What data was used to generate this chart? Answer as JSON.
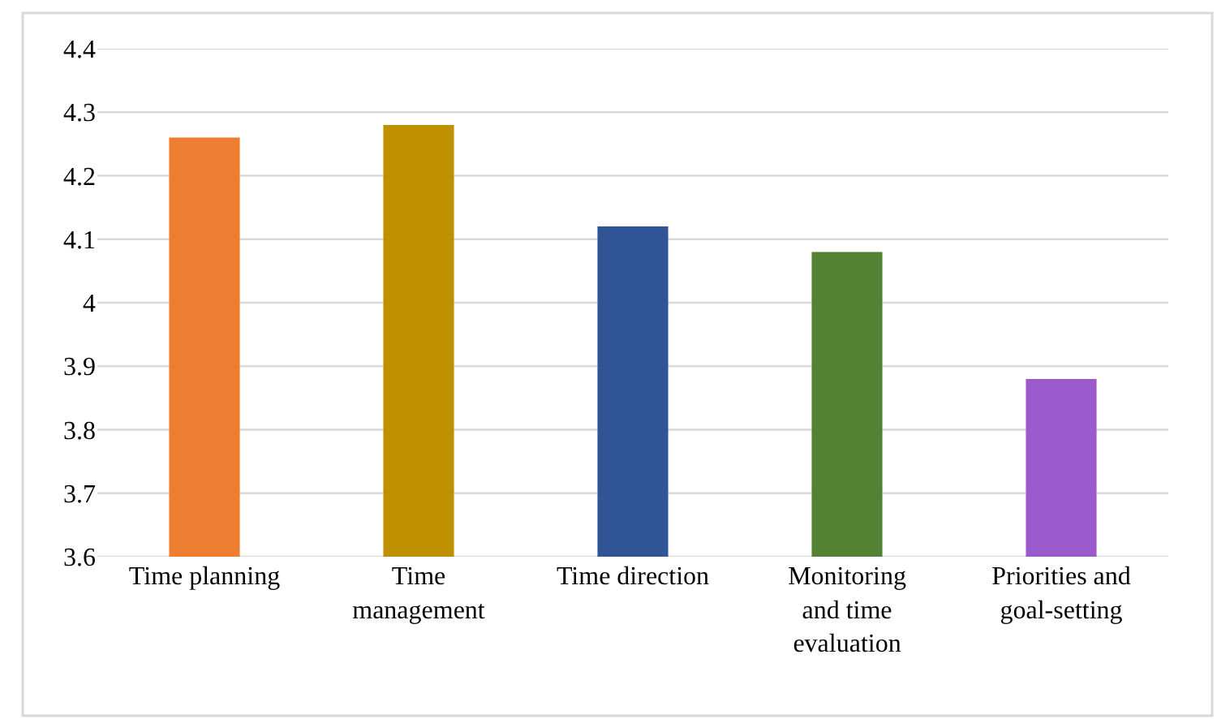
{
  "chart_data": {
    "type": "bar",
    "categories": [
      "Time planning",
      "Time\nmanagement",
      "Time direction",
      "Monitoring\nand time\nevaluation",
      "Priorities and\ngoal-setting"
    ],
    "values": [
      4.26,
      4.28,
      4.12,
      4.08,
      3.88
    ],
    "colors": [
      "#ed7d31",
      "#bf9000",
      "#2f5597",
      "#548235",
      "#9b5bcc"
    ],
    "ylim": [
      3.6,
      4.4
    ],
    "yticks": [
      3.6,
      3.7,
      3.8,
      3.9,
      {
        "value": 4,
        "label": "4"
      },
      4.1,
      4.2,
      4.3,
      4.4
    ],
    "grid": "y"
  }
}
